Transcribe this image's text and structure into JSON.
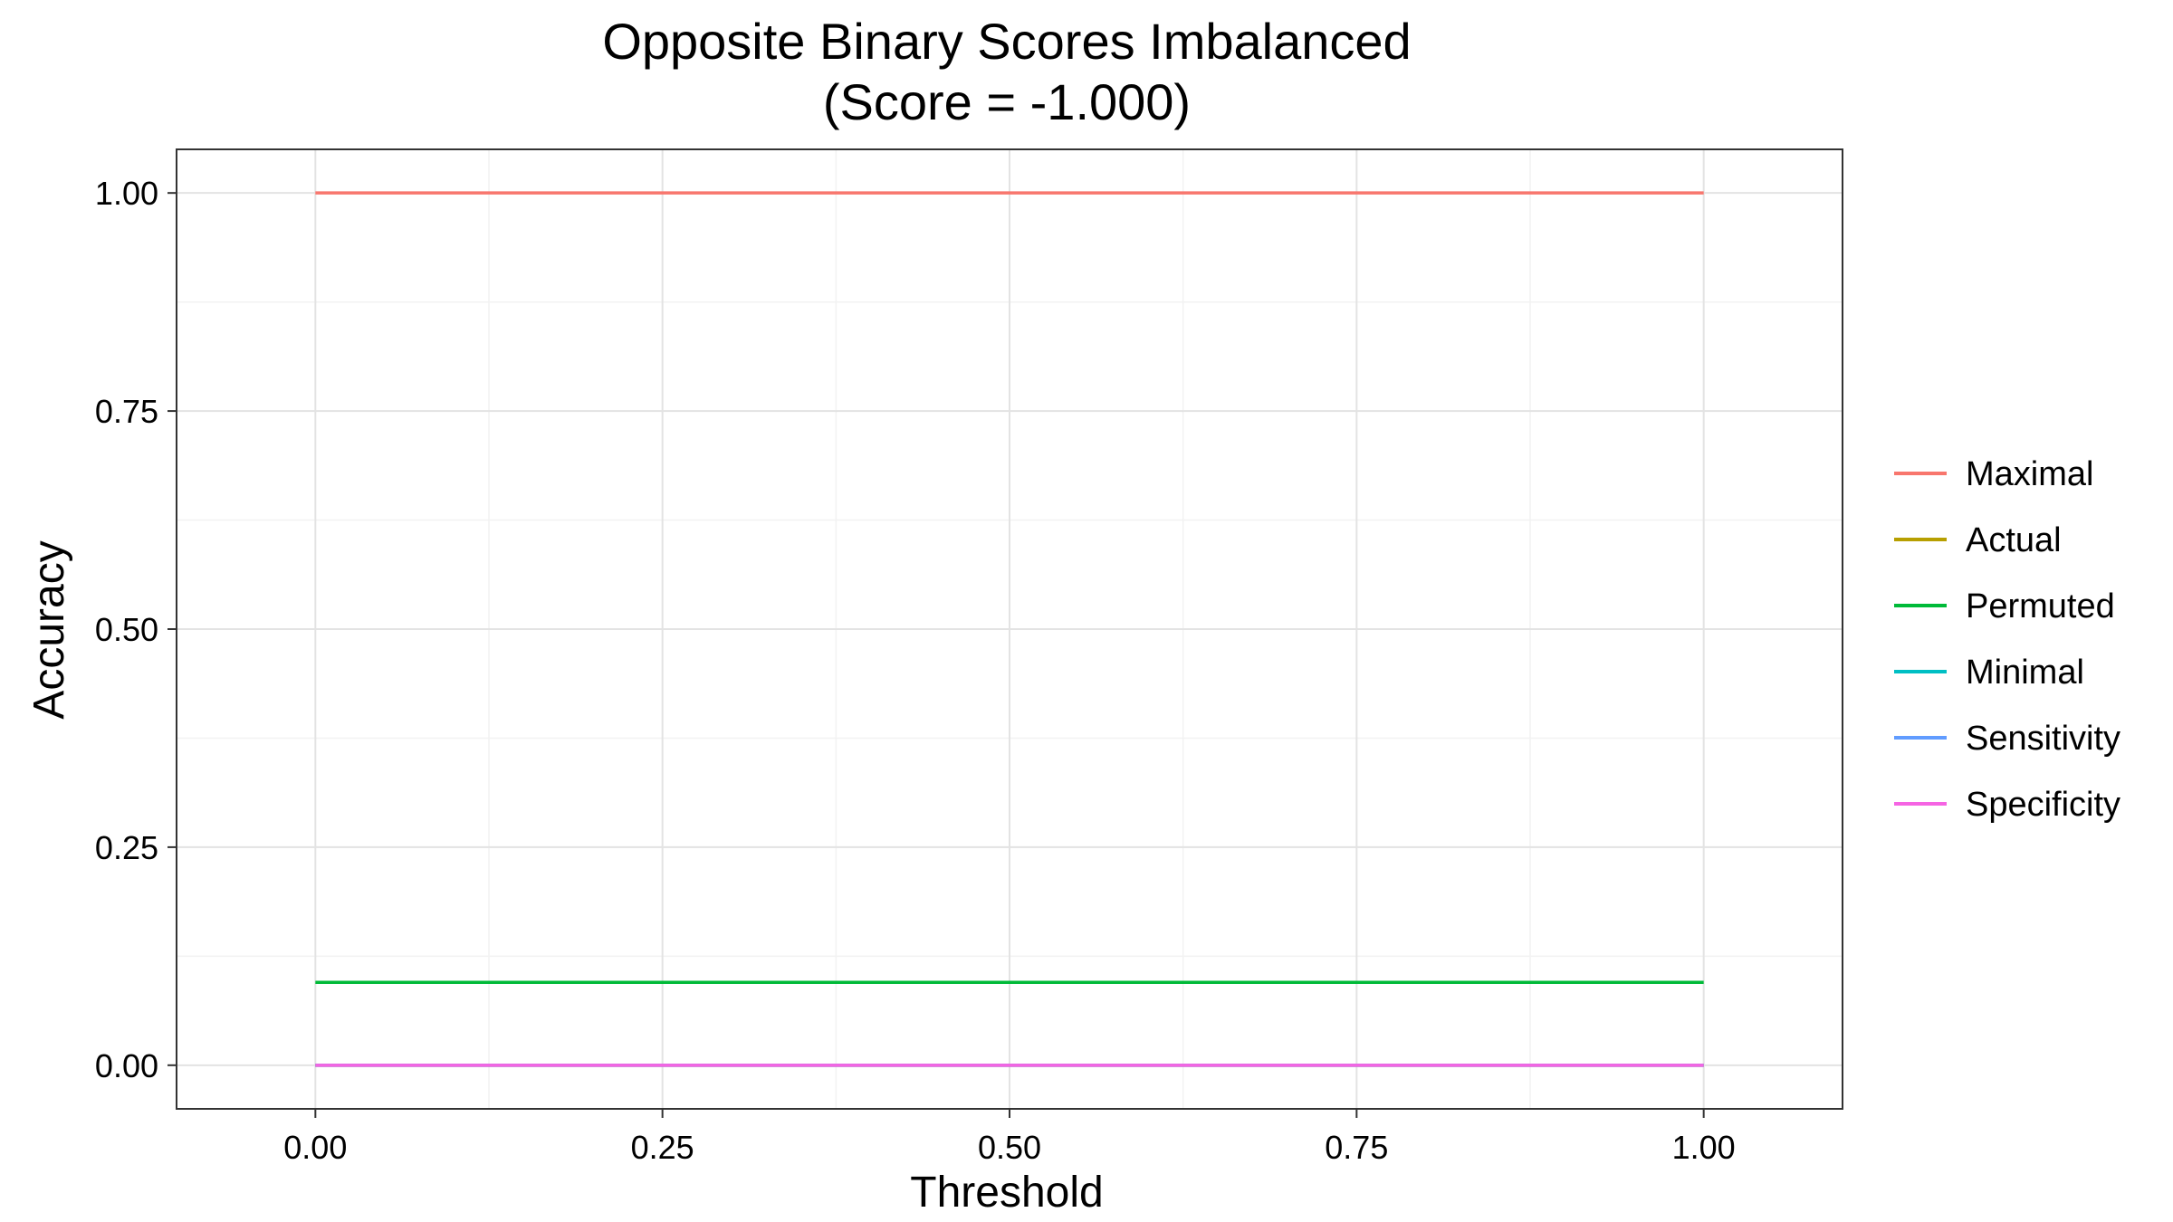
{
  "chart_data": {
    "type": "line",
    "title": "Opposite Binary Scores Imbalanced",
    "subtitle": "(Score = -1.000)",
    "xlabel": "Threshold",
    "ylabel": "Accuracy",
    "xlim": [
      -0.1,
      1.1
    ],
    "ylim": [
      -0.05,
      1.05
    ],
    "x_ticks": [
      0,
      0.25,
      0.5,
      0.75,
      1
    ],
    "x_tick_labels": [
      "0.00",
      "0.25",
      "0.50",
      "0.75",
      "1.00"
    ],
    "y_ticks": [
      0,
      0.25,
      0.5,
      0.75,
      1
    ],
    "y_tick_labels": [
      "0.00",
      "0.25",
      "0.50",
      "0.75",
      "1.00"
    ],
    "grid": true,
    "legend_position": "right",
    "series": [
      {
        "name": "Maximal",
        "color": "#F8766D",
        "x": [
          0,
          1
        ],
        "y": [
          1,
          1
        ]
      },
      {
        "name": "Actual",
        "color": "#B79F00",
        "x": [
          0,
          1
        ],
        "y": [
          0,
          0
        ]
      },
      {
        "name": "Permuted",
        "color": "#00BA38",
        "x": [
          0,
          1
        ],
        "y": [
          0.095,
          0.095
        ]
      },
      {
        "name": "Minimal",
        "color": "#00BFC4",
        "x": [
          0,
          1
        ],
        "y": [
          0,
          0
        ]
      },
      {
        "name": "Sensitivity",
        "color": "#619CFF",
        "x": [
          0,
          1
        ],
        "y": [
          0,
          0
        ]
      },
      {
        "name": "Specificity",
        "color": "#F564E3",
        "x": [
          0,
          1
        ],
        "y": [
          0,
          0
        ]
      }
    ]
  }
}
